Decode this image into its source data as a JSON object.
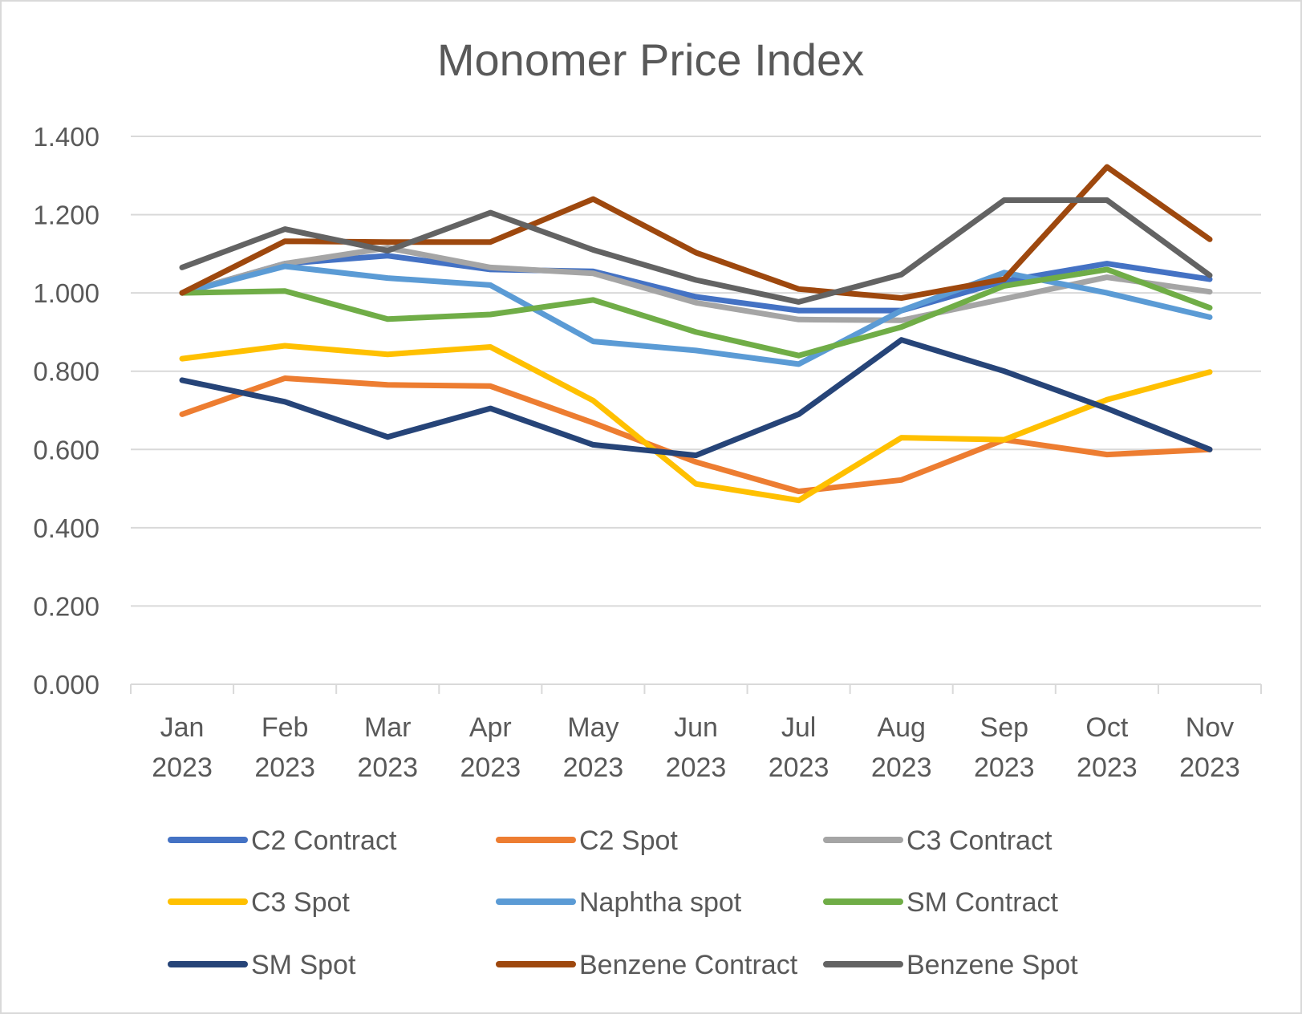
{
  "chart_data": {
    "type": "line",
    "title": "Monomer Price Index",
    "xlabel": "",
    "ylabel": "",
    "categories": [
      [
        "Jan",
        "2023"
      ],
      [
        "Feb",
        "2023"
      ],
      [
        "Mar",
        "2023"
      ],
      [
        "Apr",
        "2023"
      ],
      [
        "May",
        "2023"
      ],
      [
        "Jun",
        "2023"
      ],
      [
        "Jul",
        "2023"
      ],
      [
        "Aug",
        "2023"
      ],
      [
        "Sep",
        "2023"
      ],
      [
        "Oct",
        "2023"
      ],
      [
        "Nov",
        "2023"
      ]
    ],
    "ylim": [
      0,
      1.4
    ],
    "yticks": [
      "0.000",
      "0.200",
      "0.400",
      "0.600",
      "0.800",
      "1.000",
      "1.200",
      "1.400"
    ],
    "grid": "horizontal",
    "legend_position": "bottom",
    "series": [
      {
        "name": "C2 Contract",
        "color": "#4472C4",
        "values": [
          1.0,
          1.075,
          1.095,
          1.06,
          1.055,
          0.99,
          0.955,
          0.955,
          1.03,
          1.075,
          1.035
        ]
      },
      {
        "name": "C2 Spot",
        "color": "#ED7D31",
        "values": [
          0.69,
          0.782,
          0.765,
          0.762,
          0.668,
          0.568,
          0.493,
          0.522,
          0.625,
          0.587,
          0.6
        ]
      },
      {
        "name": "C3 Contract",
        "color": "#A5A5A5",
        "values": [
          1.0,
          1.075,
          1.115,
          1.065,
          1.05,
          0.975,
          0.932,
          0.93,
          0.985,
          1.04,
          1.003
        ]
      },
      {
        "name": "C3 Spot",
        "color": "#FFC000",
        "values": [
          0.832,
          0.865,
          0.843,
          0.862,
          0.725,
          0.512,
          0.47,
          0.63,
          0.625,
          0.727,
          0.798
        ]
      },
      {
        "name": "Naphtha spot",
        "color": "#5B9BD5",
        "values": [
          1.0,
          1.068,
          1.038,
          1.02,
          0.876,
          0.853,
          0.818,
          0.955,
          1.052,
          1.0,
          0.938
        ]
      },
      {
        "name": "SM Contract",
        "color": "#70AD47",
        "values": [
          1.0,
          1.005,
          0.933,
          0.945,
          0.982,
          0.9,
          0.84,
          0.913,
          1.018,
          1.06,
          0.962
        ]
      },
      {
        "name": "SM Spot",
        "color": "#264478",
        "values": [
          0.777,
          0.722,
          0.632,
          0.705,
          0.612,
          0.585,
          0.69,
          0.88,
          0.8,
          0.705,
          0.6
        ]
      },
      {
        "name": "Benzene Contract",
        "color": "#9E480E",
        "values": [
          1.0,
          1.132,
          1.13,
          1.13,
          1.24,
          1.103,
          1.01,
          0.987,
          1.035,
          1.322,
          1.137
        ]
      },
      {
        "name": "Benzene Spot",
        "color": "#636363",
        "values": [
          1.065,
          1.163,
          1.108,
          1.205,
          1.11,
          1.033,
          0.977,
          1.047,
          1.237,
          1.237,
          1.045
        ]
      }
    ]
  }
}
